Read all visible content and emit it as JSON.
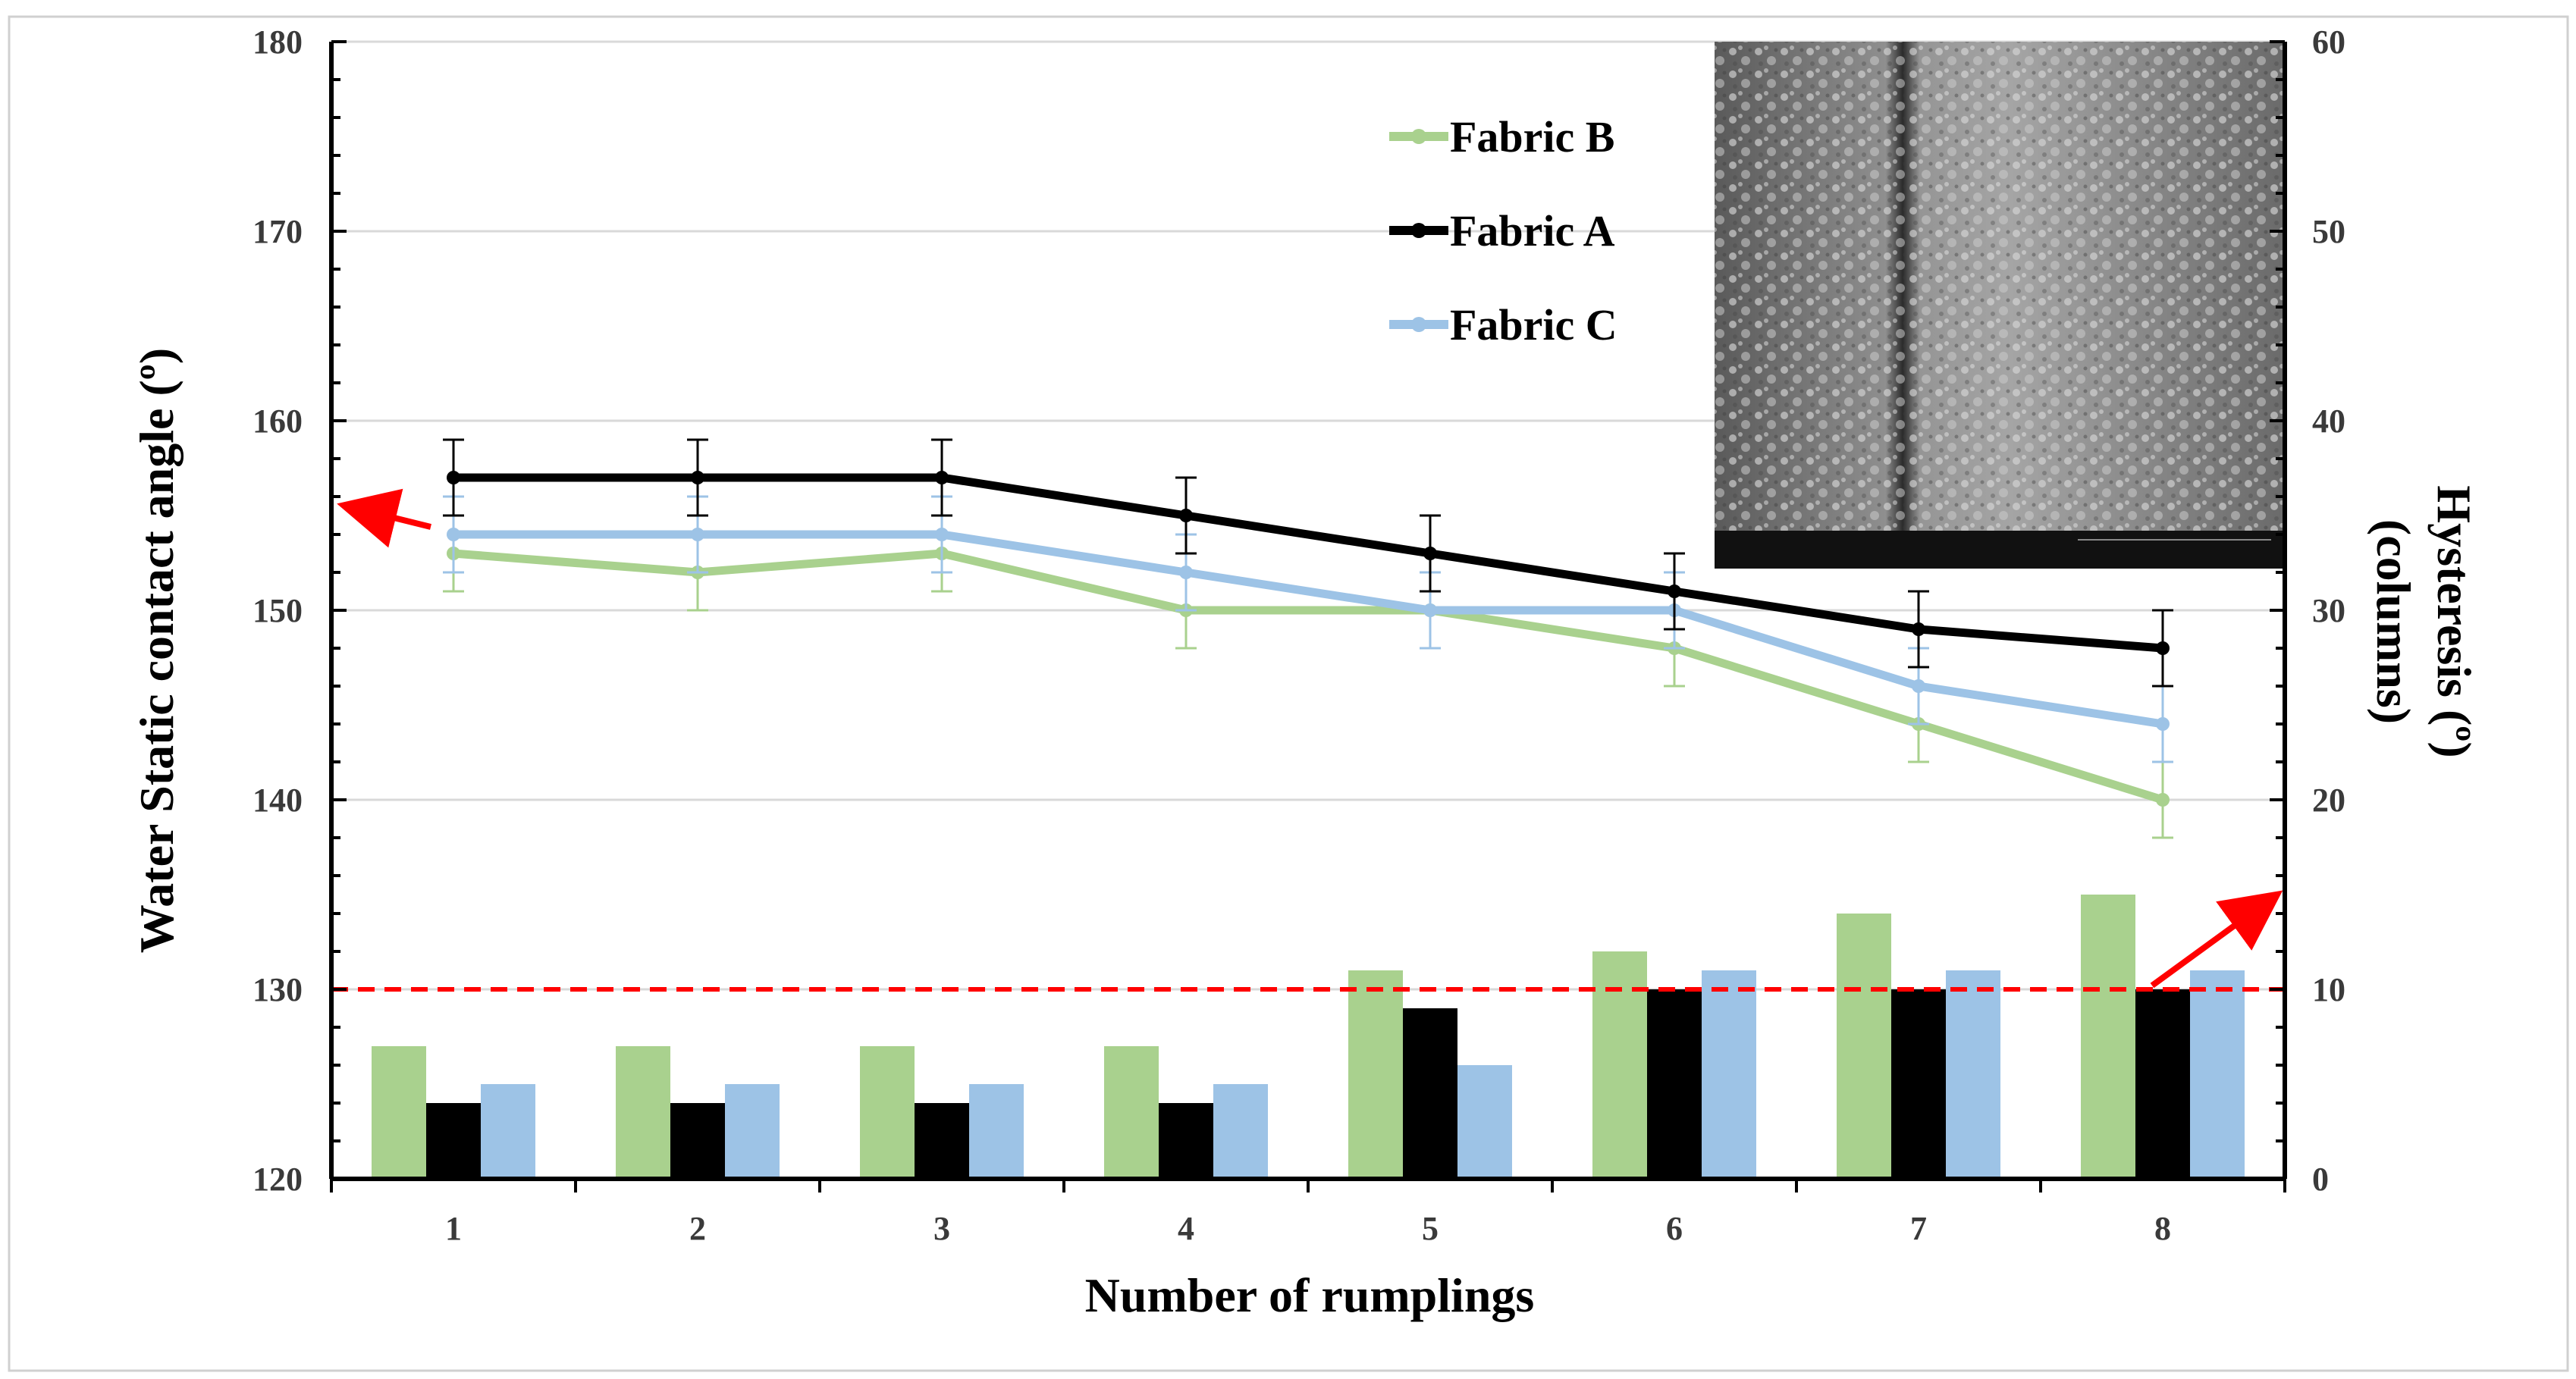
{
  "chart_data": {
    "type": "bar+line",
    "xlabel": "Number of rumplings",
    "ylabel_left": "Water Static contact angle (º)",
    "ylabel_right_line1": "Hysteresis (º)",
    "ylabel_right_line2": "(columns)",
    "categories": [
      "1",
      "2",
      "3",
      "4",
      "5",
      "6",
      "7",
      "8"
    ],
    "ylim_left": [
      120,
      180
    ],
    "ylim_right": [
      0,
      60
    ],
    "left_ticks": [
      "120",
      "130",
      "140",
      "150",
      "160",
      "170",
      "180"
    ],
    "right_ticks": [
      "0",
      "10",
      "20",
      "30",
      "40",
      "50",
      "60"
    ],
    "line_series": [
      {
        "name": "Fabric B",
        "color": "#a9d18e",
        "values": [
          153,
          152,
          153,
          150,
          150,
          148,
          144,
          140
        ],
        "errors": [
          2,
          2,
          2,
          2,
          2,
          2,
          2,
          2
        ]
      },
      {
        "name": "Fabric A",
        "color": "#000000",
        "values": [
          157,
          157,
          157,
          155,
          153,
          151,
          149,
          148
        ],
        "errors": [
          2,
          2,
          2,
          2,
          2,
          2,
          2,
          2
        ]
      },
      {
        "name": "Fabric C",
        "color": "#9dc3e6",
        "values": [
          154,
          154,
          154,
          152,
          150,
          150,
          146,
          144
        ],
        "errors": [
          2,
          2,
          2,
          2,
          2,
          2,
          2,
          2
        ]
      }
    ],
    "bar_series": [
      {
        "name": "Fabric B",
        "color": "#a9d18e",
        "values": [
          7,
          7,
          7,
          7,
          11,
          12,
          14,
          15
        ]
      },
      {
        "name": "Fabric A",
        "color": "#000000",
        "values": [
          4,
          4,
          4,
          4,
          9,
          10,
          10,
          10
        ]
      },
      {
        "name": "Fabric C",
        "color": "#9dc3e6",
        "values": [
          5,
          5,
          5,
          5,
          6,
          11,
          11,
          11
        ]
      }
    ],
    "threshold_line": {
      "value": 10,
      "axis": "right",
      "color": "#ff0000",
      "style": "dashed"
    },
    "legend": {
      "placement": "top-center",
      "entries": [
        "Fabric B",
        "Fabric A",
        "Fabric C"
      ]
    },
    "grid": true,
    "inset": "SEM micrograph (top-right)"
  }
}
